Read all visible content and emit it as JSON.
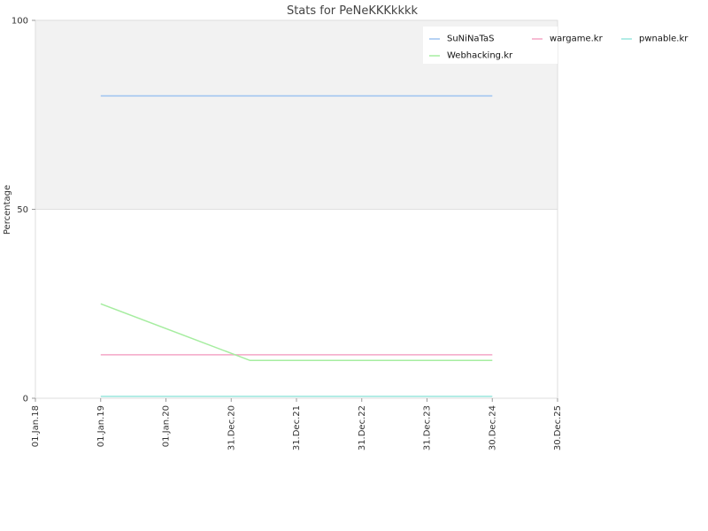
{
  "chart_data": {
    "type": "line",
    "title": "Stats for PeNeKKKkkkk",
    "xlabel": "",
    "ylabel": "Percentage",
    "ylim": [
      0,
      100
    ],
    "y_ticks": [
      0,
      50,
      100
    ],
    "x_ticks": [
      "01.Jan.18",
      "01.Jan.19",
      "01.Jan.20",
      "31.Dec.20",
      "31.Dec.21",
      "31.Dec.22",
      "31.Dec.23",
      "30.Dec.24",
      "30.Dec.25"
    ],
    "xlim": [
      "2018-01-01",
      "2025-12-30"
    ],
    "grid": false,
    "shaded_band": [
      50,
      100
    ],
    "legend_position": "top-right",
    "series": [
      {
        "name": "SuNiNaTaS",
        "color": "#9dc3f0",
        "points": [
          {
            "x": "2019-01-01",
            "y": 80
          },
          {
            "x": "2024-12-30",
            "y": 80
          }
        ]
      },
      {
        "name": "wargame.kr",
        "color": "#f4a6c6",
        "points": [
          {
            "x": "2019-01-01",
            "y": 11.5
          },
          {
            "x": "2024-12-30",
            "y": 11.5
          }
        ]
      },
      {
        "name": "pwnable.kr",
        "color": "#99e6dd",
        "points": [
          {
            "x": "2019-01-01",
            "y": 0.5
          },
          {
            "x": "2024-12-30",
            "y": 0.5
          }
        ]
      },
      {
        "name": "Webhacking.kr",
        "color": "#a6eda0",
        "points": [
          {
            "x": "2019-01-01",
            "y": 25
          },
          {
            "x": "2021-04-15",
            "y": 10
          },
          {
            "x": "2024-12-30",
            "y": 10
          }
        ]
      }
    ]
  }
}
